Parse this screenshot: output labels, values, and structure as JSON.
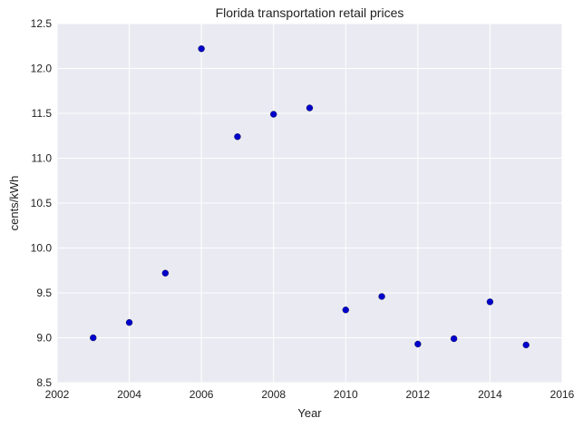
{
  "chart_data": {
    "type": "scatter",
    "title": "Florida   transportation retail prices",
    "xlabel": "Year",
    "ylabel": "cents/kWh",
    "xlim": [
      2002,
      2016
    ],
    "ylim": [
      8.5,
      12.5
    ],
    "xticks": [
      2002,
      2004,
      2006,
      2008,
      2010,
      2012,
      2014,
      2016
    ],
    "yticks": [
      8.5,
      9.0,
      9.5,
      10.0,
      10.5,
      11.0,
      11.5,
      12.0,
      12.5
    ],
    "ytick_labels": [
      "8.5",
      "9.0",
      "9.5",
      "10.0",
      "10.5",
      "11.0",
      "11.5",
      "12.0",
      "12.5"
    ],
    "grid": true,
    "background_color": "#eaeaf2",
    "grid_color": "#ffffff",
    "point_color": "#0000cc",
    "points": [
      {
        "x": 2003,
        "y": 9.0
      },
      {
        "x": 2004,
        "y": 9.17
      },
      {
        "x": 2005,
        "y": 9.72
      },
      {
        "x": 2006,
        "y": 12.22
      },
      {
        "x": 2007,
        "y": 11.24
      },
      {
        "x": 2008,
        "y": 11.49
      },
      {
        "x": 2009,
        "y": 11.56
      },
      {
        "x": 2010,
        "y": 9.31
      },
      {
        "x": 2011,
        "y": 9.46
      },
      {
        "x": 2012,
        "y": 8.93
      },
      {
        "x": 2013,
        "y": 8.99
      },
      {
        "x": 2014,
        "y": 9.4
      },
      {
        "x": 2015,
        "y": 8.92
      }
    ]
  }
}
